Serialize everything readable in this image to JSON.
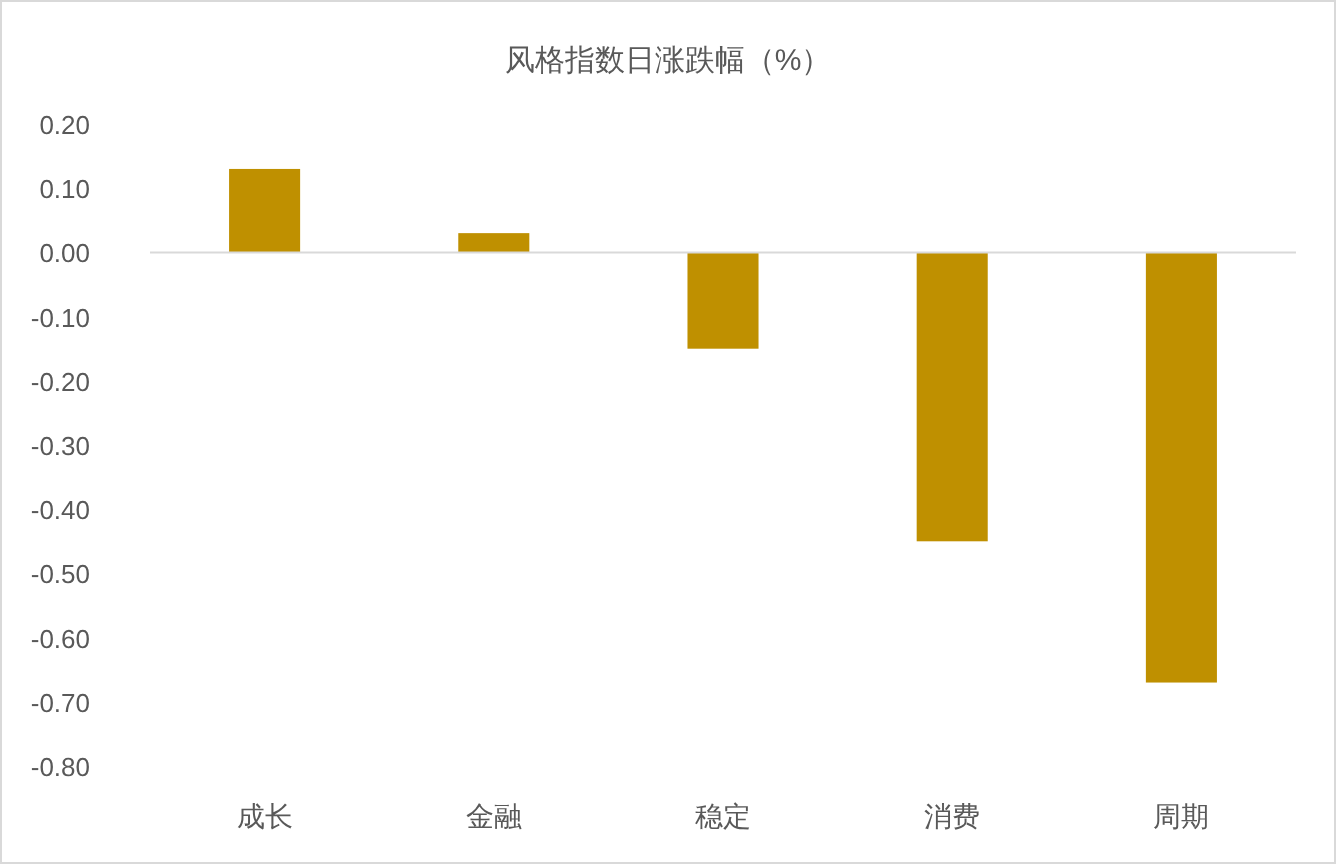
{
  "chart_data": {
    "type": "bar",
    "title": "风格指数日涨跌幅（%）",
    "categories": [
      "成长",
      "金融",
      "稳定",
      "消费",
      "周期"
    ],
    "values": [
      0.13,
      0.03,
      -0.15,
      -0.45,
      -0.67
    ],
    "color": "#bf9000",
    "ylim": [
      -0.8,
      0.2
    ],
    "yticks": [
      {
        "value": 0.2,
        "label": "0.20"
      },
      {
        "value": 0.1,
        "label": "0.10"
      },
      {
        "value": 0,
        "label": "0.00"
      },
      {
        "value": -0.1,
        "label": "-0.10"
      },
      {
        "value": -0.2,
        "label": "-0.20"
      },
      {
        "value": -0.3,
        "label": "-0.30"
      },
      {
        "value": -0.4,
        "label": "-0.40"
      },
      {
        "value": -0.5,
        "label": "-0.50"
      },
      {
        "value": -0.6,
        "label": "-0.60"
      },
      {
        "value": -0.7,
        "label": "-0.70"
      },
      {
        "value": -0.8,
        "label": "-0.80"
      }
    ]
  }
}
